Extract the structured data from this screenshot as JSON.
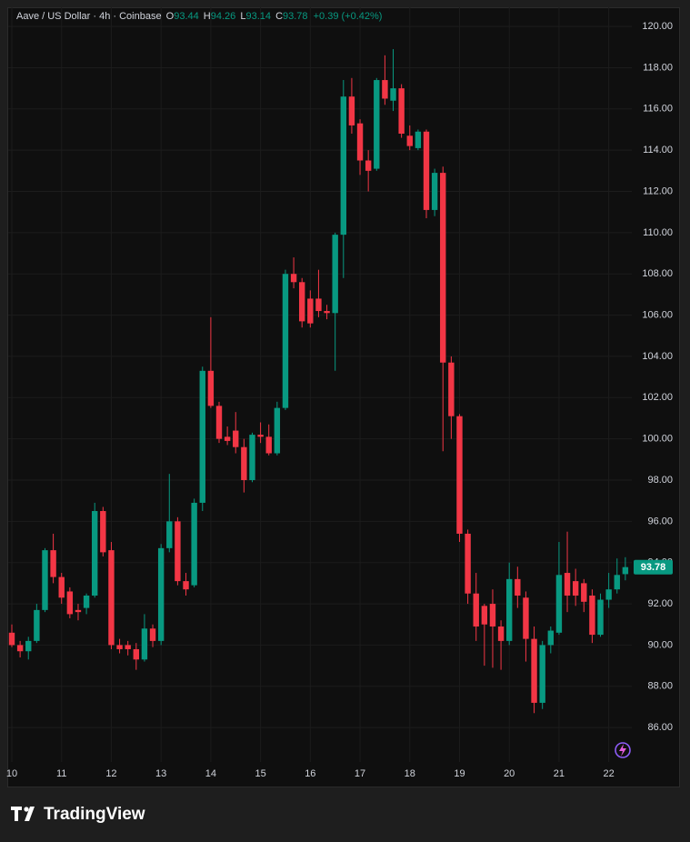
{
  "header": {
    "symbol": "Aave / US Dollar · 4h · Coinbase",
    "open_label": "O",
    "open": "93.44",
    "high_label": "H",
    "high": "94.26",
    "low_label": "L",
    "low": "93.14",
    "close_label": "C",
    "close": "93.78",
    "change": "+0.39 (+0.42%)"
  },
  "footer": {
    "brand": "TradingView"
  },
  "chart_data": {
    "type": "candlestick",
    "up_color": "#089981",
    "down_color": "#f23645",
    "categories": [
      "10",
      null,
      null,
      null,
      null,
      null,
      "11",
      null,
      null,
      null,
      null,
      null,
      "12",
      null,
      null,
      null,
      null,
      null,
      "13",
      null,
      null,
      null,
      null,
      null,
      "14",
      null,
      null,
      null,
      null,
      null,
      "15",
      null,
      null,
      null,
      null,
      null,
      "16",
      null,
      null,
      null,
      null,
      null,
      "17",
      null,
      null,
      null,
      null,
      null,
      "18",
      null,
      null,
      null,
      null,
      null,
      "19",
      null,
      null,
      null,
      null,
      null,
      "20",
      null,
      null,
      null,
      null,
      null,
      "21",
      null,
      null,
      null,
      null,
      null,
      "22",
      null,
      null
    ],
    "open": [
      90.6,
      90.0,
      89.7,
      90.2,
      91.7,
      94.6,
      93.3,
      92.6,
      91.7,
      91.8,
      92.4,
      96.5,
      94.6,
      90.0,
      90.0,
      89.8,
      89.3,
      90.8,
      90.2,
      94.7,
      96.0,
      93.1,
      92.9,
      96.9,
      103.3,
      101.6,
      100.1,
      100.4,
      99.6,
      98.0,
      100.2,
      100.1,
      99.3,
      101.5,
      108.0,
      107.6,
      106.8,
      106.8,
      106.2,
      106.1,
      109.9,
      116.6,
      115.3,
      113.5,
      113.1,
      117.4,
      116.4,
      117.0,
      114.7,
      114.1,
      114.9,
      111.1,
      112.9,
      103.7,
      101.1,
      95.4,
      92.5,
      91.9,
      92.0,
      90.9,
      90.2,
      93.2,
      92.3,
      90.3,
      87.2,
      90.0,
      90.6,
      93.5,
      93.1,
      93.0,
      92.4,
      90.5,
      92.2,
      92.7,
      93.44
    ],
    "high": [
      91.0,
      90.2,
      90.4,
      92.0,
      94.7,
      95.4,
      93.5,
      92.8,
      92.0,
      92.5,
      96.9,
      96.7,
      95.0,
      90.3,
      90.2,
      90.1,
      91.5,
      91.0,
      94.9,
      98.3,
      96.2,
      93.5,
      97.1,
      103.5,
      105.9,
      101.8,
      100.6,
      101.3,
      100.0,
      100.3,
      100.8,
      100.7,
      101.8,
      108.2,
      108.8,
      107.8,
      107.2,
      108.2,
      106.5,
      110.0,
      117.4,
      117.5,
      115.5,
      114.0,
      117.5,
      118.6,
      118.9,
      117.2,
      115.2,
      115.0,
      115.0,
      113.1,
      113.2,
      104.0,
      101.2,
      95.6,
      93.5,
      92.0,
      92.7,
      91.2,
      94.0,
      93.8,
      92.6,
      90.9,
      90.2,
      90.9,
      95.0,
      95.5,
      93.7,
      93.2,
      92.7,
      92.5,
      93.5,
      94.2,
      94.26
    ],
    "low": [
      89.9,
      89.4,
      89.3,
      90.1,
      91.6,
      93.0,
      92.0,
      91.3,
      91.2,
      91.5,
      92.3,
      94.3,
      89.8,
      89.6,
      89.5,
      88.8,
      89.2,
      89.9,
      90.0,
      94.5,
      92.9,
      92.4,
      92.8,
      96.5,
      101.5,
      99.8,
      99.7,
      99.3,
      97.4,
      97.9,
      99.8,
      99.2,
      99.2,
      101.4,
      107.3,
      105.4,
      105.4,
      105.9,
      105.8,
      103.3,
      107.8,
      114.8,
      112.8,
      112.0,
      113.0,
      116.2,
      115.9,
      114.6,
      114.0,
      114.0,
      110.7,
      110.8,
      99.4,
      100.0,
      95.0,
      92.0,
      90.2,
      89.0,
      88.9,
      88.8,
      90.0,
      91.8,
      89.2,
      86.7,
      86.9,
      89.6,
      90.5,
      91.6,
      91.9,
      91.6,
      90.1,
      90.4,
      91.8,
      92.5,
      93.14
    ],
    "close": [
      90.0,
      89.7,
      90.2,
      91.7,
      94.6,
      93.3,
      92.3,
      91.5,
      91.6,
      92.4,
      96.5,
      94.5,
      90.0,
      89.8,
      89.8,
      89.3,
      90.8,
      90.2,
      94.7,
      96.0,
      93.1,
      92.7,
      96.9,
      103.3,
      101.6,
      100.0,
      99.9,
      99.6,
      98.0,
      100.2,
      100.1,
      99.3,
      101.5,
      108.0,
      107.6,
      105.7,
      105.6,
      106.2,
      106.1,
      109.9,
      116.6,
      115.2,
      113.5,
      113.0,
      117.4,
      116.5,
      117.0,
      114.8,
      114.2,
      114.9,
      111.1,
      112.9,
      103.7,
      101.1,
      95.4,
      92.5,
      90.9,
      91.0,
      90.9,
      90.2,
      93.2,
      92.4,
      90.3,
      87.2,
      90.0,
      90.7,
      93.4,
      92.4,
      92.4,
      92.1,
      90.5,
      92.2,
      92.7,
      93.4,
      93.78
    ],
    "last_price_label": "93.78",
    "ylim": [
      84.33,
      120.93
    ],
    "yticks": [
      {
        "value": 86,
        "label": "86.00"
      },
      {
        "value": 88,
        "label": "88.00"
      },
      {
        "value": 90,
        "label": "90.00"
      },
      {
        "value": 92,
        "label": "92.00"
      },
      {
        "value": 94,
        "label": "94.00"
      },
      {
        "value": 96,
        "label": "96.00"
      },
      {
        "value": 98,
        "label": "98.00"
      },
      {
        "value": 100,
        "label": "100.00"
      },
      {
        "value": 102,
        "label": "102.00"
      },
      {
        "value": 104,
        "label": "104.00"
      },
      {
        "value": 106,
        "label": "106.00"
      },
      {
        "value": 108,
        "label": "108.00"
      },
      {
        "value": 110,
        "label": "110.00"
      },
      {
        "value": 112,
        "label": "112.00"
      },
      {
        "value": 114,
        "label": "114.00"
      },
      {
        "value": 116,
        "label": "116.00"
      },
      {
        "value": 118,
        "label": "118.00"
      },
      {
        "value": 120,
        "label": "120.00"
      }
    ],
    "grid": true
  }
}
